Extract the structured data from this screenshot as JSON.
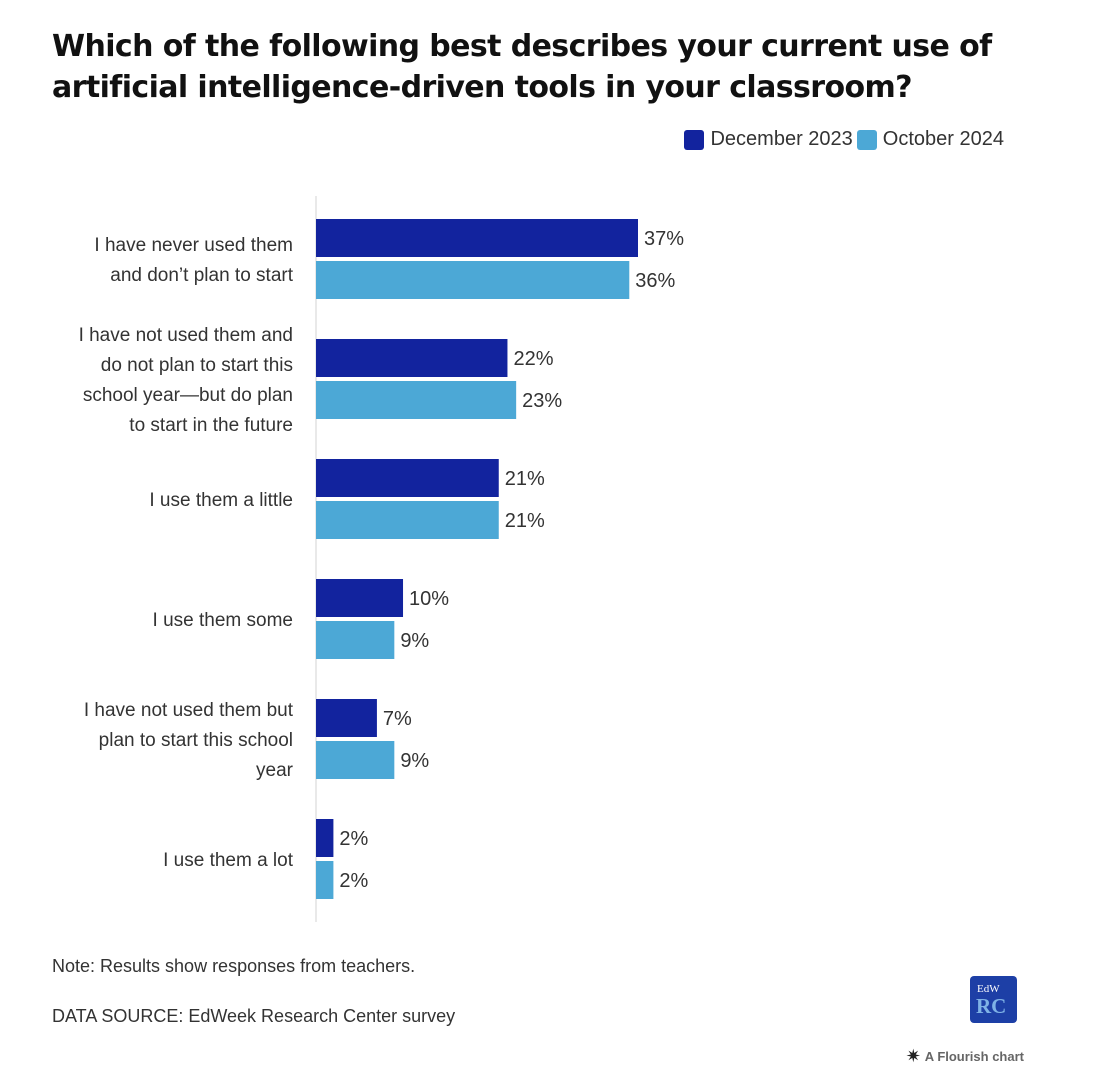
{
  "colors": {
    "series1": "#12239e",
    "series2": "#4ca8d6",
    "axis": "#e2e2e2"
  },
  "chart_data": {
    "type": "bar",
    "orientation": "horizontal",
    "title": "Which of the following best describes your current use of artificial intelligence-driven tools in your classroom?",
    "categories": [
      [
        "I have never used them",
        "and don’t plan to start"
      ],
      [
        "I have not used them and",
        "do not plan to start this",
        "school year—but do plan",
        "to start in the future"
      ],
      [
        "I use them a little"
      ],
      [
        "I use them some"
      ],
      [
        "I have not used them but",
        "plan to start this school",
        "year"
      ],
      [
        "I use them a lot"
      ]
    ],
    "series": [
      {
        "name": "December 2023",
        "values": [
          37,
          22,
          21,
          10,
          7,
          2
        ],
        "labels": [
          "37%",
          "22%",
          "21%",
          "10%",
          "7%",
          "2%"
        ]
      },
      {
        "name": "October 2024",
        "values": [
          36,
          23,
          21,
          9,
          9,
          2
        ],
        "labels": [
          "36%",
          "23%",
          "21%",
          "9%",
          "9%",
          "2%"
        ]
      }
    ],
    "xlim": [
      0,
      37
    ],
    "legend": "top-right",
    "grid": false
  },
  "footer": {
    "note": "Note: Results show responses from teachers.",
    "source": "DATA SOURCE: EdWeek Research Center survey",
    "logo_top": "EdW",
    "logo_bottom": "RC",
    "flourish": "A Flourish chart",
    "flourish_icon": "✷"
  }
}
